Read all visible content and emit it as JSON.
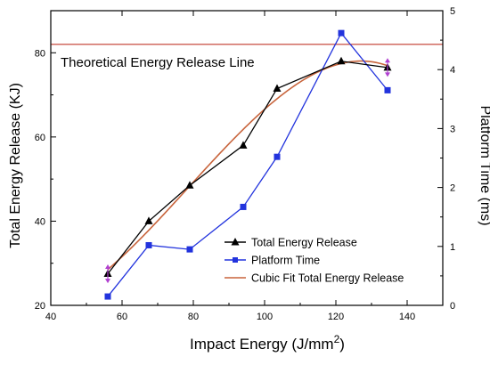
{
  "chart_data": {
    "type": "line",
    "title": "",
    "xlabel": "Impact Energy (J/mm",
    "xlabel_sup": "2",
    "xlabel_close": ")",
    "ylabel_left": "Total Energy Release (KJ)",
    "ylabel_right": "Platform Time (ms)",
    "xlim": [
      40,
      150
    ],
    "ylim_left": [
      20,
      90
    ],
    "ylim_right": [
      0,
      5
    ],
    "x_ticks": [
      40,
      60,
      80,
      100,
      120,
      140
    ],
    "y_left_ticks": [
      20,
      40,
      60,
      80
    ],
    "y_right_ticks": [
      0,
      1,
      2,
      3,
      4,
      5
    ],
    "grid": false,
    "legend_position": "bottom-right",
    "reference_line": {
      "label": "Theoretical Energy Release Line",
      "y": 82,
      "axis": "left",
      "color": "#c0392b"
    },
    "series": [
      {
        "name": "Total Energy Release",
        "axis": "left",
        "marker": "triangle",
        "color": "#000000",
        "x": [
          56,
          67.5,
          79,
          94,
          103.5,
          121.5,
          134.5
        ],
        "y": [
          27.5,
          40,
          48.5,
          58,
          71.5,
          78,
          76.5
        ]
      },
      {
        "name": "Platform Time",
        "axis": "right",
        "marker": "square",
        "color": "#2233dd",
        "x": [
          56,
          67.5,
          79,
          94,
          103.5,
          121.5,
          134.5
        ],
        "y": [
          0.15,
          1.02,
          0.95,
          1.67,
          2.52,
          4.62,
          3.65
        ]
      },
      {
        "name": "Cubic Fit Total Energy Release",
        "axis": "left",
        "marker": "none",
        "color": "#c8643c",
        "fit": "cubic",
        "x_range": [
          56,
          134.5
        ]
      }
    ],
    "error_bars": {
      "color": "#b040d0",
      "series": "Total Energy Release",
      "x": [
        56,
        134.5
      ],
      "y": [
        27.5,
        76.5
      ],
      "half_range": 1.6
    }
  }
}
